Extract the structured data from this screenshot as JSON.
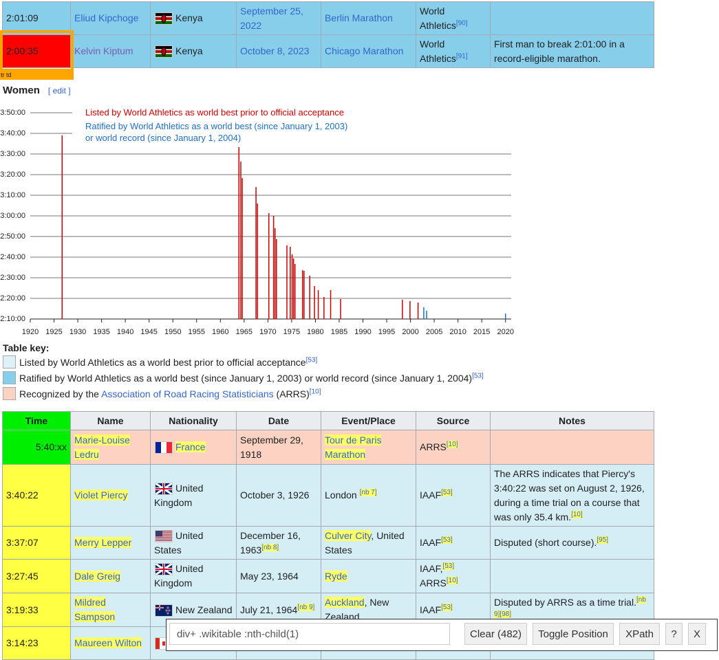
{
  "top_table": {
    "rows": [
      {
        "time": "2:01:09",
        "name": "Eliud Kipchoge",
        "nationality": "Kenya",
        "date": "September 25, 2022",
        "event_link": "Berlin Marathon",
        "source": [
          {
            "text": "World Athletics",
            "ref": "[90]"
          }
        ]
      },
      {
        "time": "2:00:35",
        "name": "Kelvin Kiptum",
        "nationality": "Kenya",
        "date": "October 8, 2023",
        "event_link": "Chicago Marathon",
        "source": [
          {
            "text": "World Athletics",
            "ref": "[91]"
          }
        ],
        "notes": "First man to break 2:01:00 in a record-eligible marathon."
      }
    ]
  },
  "inspector": {
    "label": "tr td"
  },
  "section": {
    "title": "Women",
    "edit": "[ edit ]"
  },
  "chart_data": {
    "type": "bar",
    "xlim": [
      1920,
      2021.2
    ],
    "ylim": [
      7800,
      13800
    ],
    "xticks": [
      1920,
      1925,
      1930,
      1935,
      1940,
      1945,
      1950,
      1955,
      1960,
      1965,
      1970,
      1975,
      1980,
      1985,
      1990,
      1995,
      2000,
      2005,
      2010,
      2015,
      2020
    ],
    "yticks": [
      {
        "value": 7800,
        "label": "2:10:00"
      },
      {
        "value": 8400,
        "label": "2:20:00"
      },
      {
        "value": 9000,
        "label": "2:30:00"
      },
      {
        "value": 9600,
        "label": "2:40:00"
      },
      {
        "value": 10200,
        "label": "2:50:00"
      },
      {
        "value": 10800,
        "label": "3:00:00"
      },
      {
        "value": 11400,
        "label": "3:10:00"
      },
      {
        "value": 12000,
        "label": "3:20:00"
      },
      {
        "value": 12600,
        "label": "3:30:00"
      },
      {
        "value": 13200,
        "label": "3:40:00"
      },
      {
        "value": 13800,
        "label": "3:50:00"
      }
    ],
    "grid": true,
    "series": [
      {
        "name": "Listed by World Athletics as world best prior to official acceptance",
        "color": "#cc0000",
        "x": [
          1926.7,
          1963.9,
          1964.3,
          1964.6,
          1967.5,
          1967.8,
          1970.2,
          1971.2,
          1971.5,
          1971.8,
          1974.0,
          1974.7,
          1975.1,
          1975.4,
          1975.7,
          1977.3,
          1977.6,
          1978.8,
          1979.8,
          1980.6,
          1981.8,
          1983.2,
          1985.3,
          1998.3,
          1999.9,
          2001.6
        ],
        "values": [
          13140,
          12940,
          12380,
          11900,
          11640,
          11160,
          10880,
          10800,
          10440,
          10120,
          9940,
          9900,
          9680,
          9560,
          9400,
          9220,
          9200,
          9060,
          8760,
          8640,
          8440,
          8640,
          8380,
          8360,
          8320,
          8280
        ]
      },
      {
        "name": "Ratified by World Athletics as a world best (since January 1, 2003) or world record (since January 1, 2004)",
        "color": "#1f6fc5",
        "x": [
          2002.8,
          2003.4,
          2020.0
        ],
        "values": [
          8140,
          8040,
          7960
        ]
      }
    ]
  },
  "table_key": {
    "title": "Table key:",
    "items": [
      {
        "text": "Listed by World Athletics as a world best prior to official acceptance",
        "ref": "[53]"
      },
      {
        "text": "Ratified by World Athletics as a world best (since January 1, 2003) or world record (since January 1, 2004)",
        "ref": "[53]"
      },
      {
        "text": "Recognized by the ",
        "link": "Association of Road Racing Statisticians",
        "text2": " (ARRS)",
        "ref": "[10]"
      }
    ]
  },
  "women_table": {
    "header": [
      "Time",
      "Name",
      "Nationality",
      "Date",
      "Event/Place",
      "Source",
      "Notes"
    ],
    "rows": [
      {
        "time": "5:40:xx",
        "name": "Marie-Louise Ledru",
        "nationality": "France",
        "date": "September 29, 1918",
        "event_link": "Tour de Paris Marathon",
        "source": [
          {
            "text": "ARRS",
            "ref": "[10]"
          }
        ]
      },
      {
        "time": "3:40:22",
        "name": "Violet Piercy",
        "nationality": "United Kingdom",
        "date": "October 3, 1926",
        "event": "London ",
        "event_ref": "[nb 7]",
        "source": [
          {
            "text": "IAAF",
            "ref": "[53]"
          }
        ],
        "notes": "The ARRS indicates that Piercy's 3:40:22 was set on August 2, 1926, during a time trial on a course that was only 35.4 km.",
        "notes_ref": "[10]"
      },
      {
        "time": "3:37:07",
        "name": "Merry Lepper",
        "nationality": "United States",
        "date": "December 16, 1963",
        "date_ref": "[nb 8]",
        "event_link": "Culver City",
        "event_rest": ", United States",
        "source": [
          {
            "text": "IAAF",
            "ref": "[53]"
          }
        ],
        "notes": "Disputed (short course).",
        "notes_ref": "[95]"
      },
      {
        "time": "3:27:45",
        "name": "Dale Greig",
        "nationality": "United Kingdom",
        "date": "May 23, 1964",
        "event_link": "Ryde",
        "source": [
          {
            "text": "IAAF,",
            "ref": "[53]"
          },
          {
            "text": "ARRS",
            "ref": "[10]"
          }
        ]
      },
      {
        "time": "3:19:33",
        "name": "Mildred Sampson",
        "nationality": "New Zealand",
        "date": "July 21, 1964",
        "date_ref": "[nb 9]",
        "event_link": "Auckland",
        "event_rest": ", New Zealand",
        "source": [
          {
            "text": "IAAF",
            "ref": "[53]"
          }
        ],
        "notes": "Disputed by ARRS as a time trial.",
        "notes_ref": "[nb 9][98]"
      },
      {
        "time": "3:14:23",
        "name": "Maureen Wilton"
      }
    ]
  },
  "toolbar": {
    "selector": "div+ .wikitable :nth-child(1)",
    "buttons": [
      "Clear (482)",
      "Toggle Position",
      "XPath",
      "?",
      "X"
    ]
  }
}
